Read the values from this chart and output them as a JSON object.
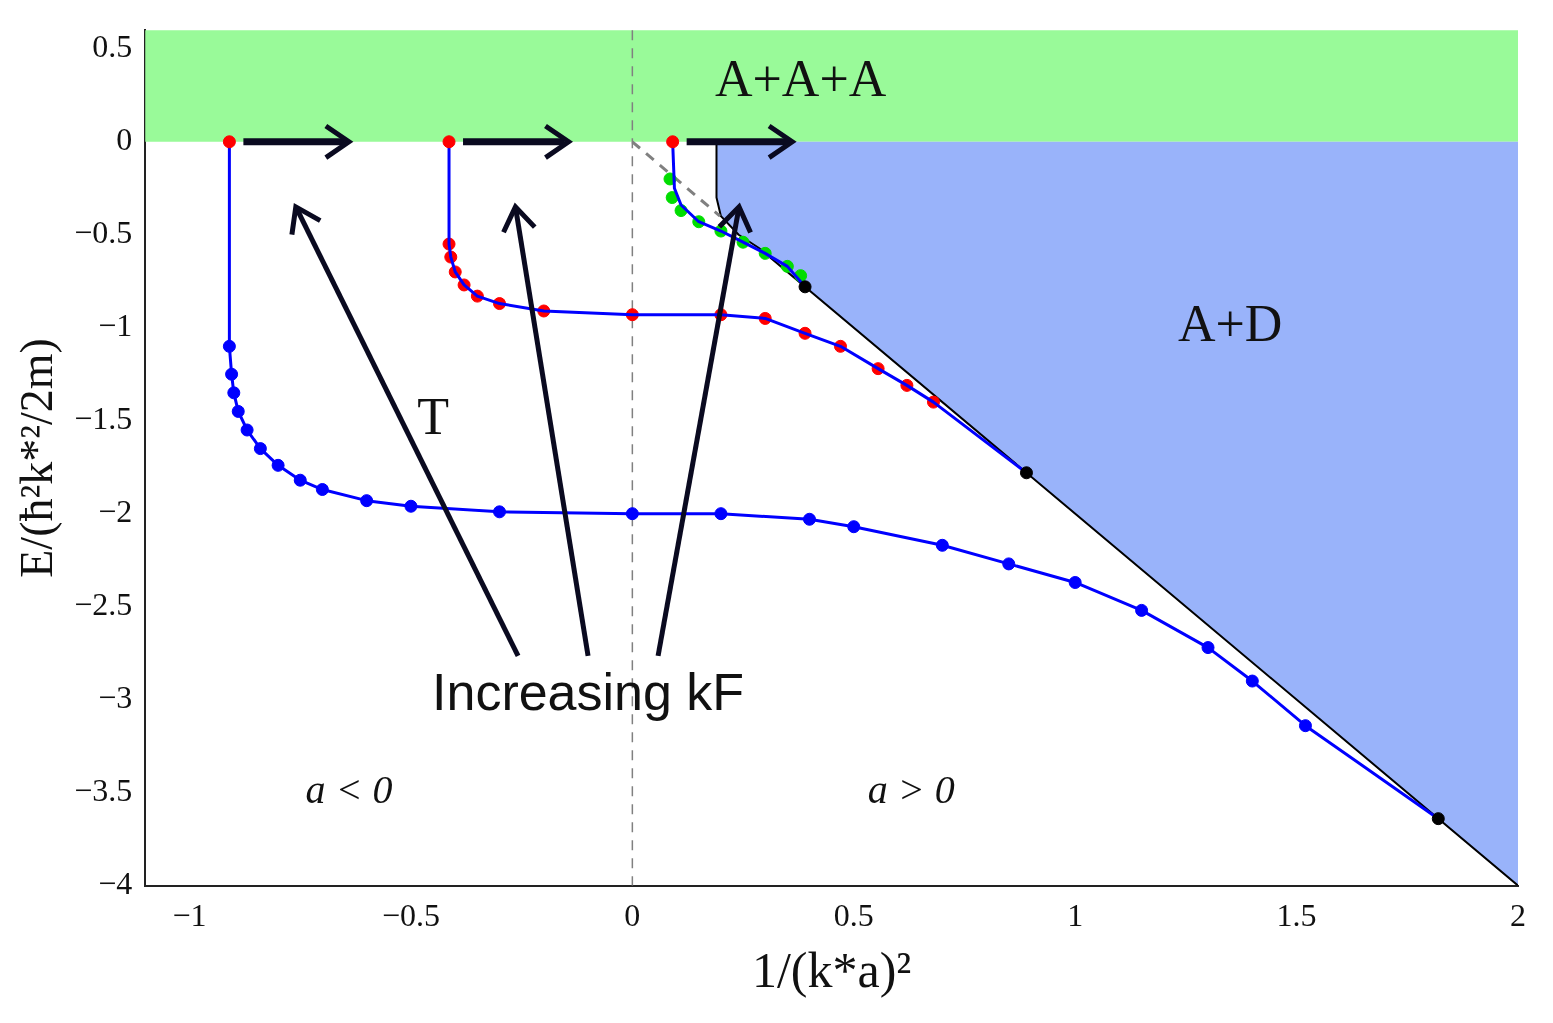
{
  "chart_data": {
    "type": "scatter",
    "xlabel": "1/(k*a)²",
    "ylabel": "E/(ħ²k*²/2m)",
    "xlim": [
      -1.1,
      2
    ],
    "ylim": [
      -4,
      0.6
    ],
    "xticks": [
      {
        "value": -1,
        "label": "−1"
      },
      {
        "value": -0.5,
        "label": "−0.5"
      },
      0,
      0.5,
      1,
      1.5,
      2
    ],
    "yticks": [
      0.5,
      0,
      {
        "value": -0.5,
        "label": "−0.5"
      },
      {
        "value": -1,
        "label": "−1"
      },
      {
        "value": -1.5,
        "label": "−1.5"
      },
      {
        "value": -2,
        "label": "−2"
      },
      {
        "value": -2.5,
        "label": "−2.5"
      },
      {
        "value": -3,
        "label": "−3"
      },
      {
        "value": -3.5,
        "label": "−3.5"
      },
      {
        "value": -4,
        "label": "−4"
      }
    ],
    "grid": false,
    "legend": false,
    "bands": [
      {
        "axis": "y",
        "from": 0,
        "to": 0.6,
        "color": "#99fa99"
      }
    ],
    "ref_lines": [
      {
        "axis": "x",
        "value": 0,
        "color": "#808080",
        "line_style": "dashed"
      }
    ],
    "annotations": [
      "A+A+A",
      "A+D",
      "T",
      "a < 0",
      "a > 0",
      "Increasing kF"
    ],
    "series": [
      {
        "type": "area",
        "color": "#99b3fa",
        "x": [
          0.19,
          0.19,
          0.2,
          0.24,
          0.285,
          2
        ],
        "values": [
          0,
          -0.3,
          -0.4,
          -0.5,
          -0.57,
          -4
        ]
      },
      {
        "type": "line",
        "color": "#808080",
        "marker": "none",
        "line_style": "dashed",
        "x": [
          0,
          0.198
        ],
        "values": [
          0,
          -0.4
        ]
      },
      {
        "color": "#0000ff",
        "marker": "circle",
        "x": [
          -0.91,
          -0.905,
          -0.9,
          -0.89,
          -0.87,
          -0.84,
          -0.8,
          -0.75,
          -0.7,
          -0.6,
          -0.5,
          -0.3,
          0,
          0.2,
          0.4,
          0.5,
          0.7,
          0.85,
          1.0,
          1.15,
          1.3,
          1.4,
          1.52
        ],
        "values": [
          -1.1,
          -1.25,
          -1.35,
          -1.45,
          -1.55,
          -1.65,
          -1.74,
          -1.82,
          -1.87,
          -1.93,
          -1.96,
          -1.99,
          -2.0,
          -2.0,
          -2.03,
          -2.07,
          -2.17,
          -2.27,
          -2.37,
          -2.52,
          -2.72,
          -2.9,
          -3.14
        ]
      },
      {
        "color": "#ff0000",
        "marker": "circle",
        "x": [
          -0.414,
          -0.41,
          -0.4,
          -0.38,
          -0.35,
          -0.3,
          -0.2,
          0,
          0.2,
          0.3,
          0.39,
          0.47,
          0.555,
          0.62,
          0.68
        ],
        "values": [
          -0.55,
          -0.62,
          -0.7,
          -0.77,
          -0.83,
          -0.87,
          -0.91,
          -0.93,
          -0.93,
          -0.95,
          -1.03,
          -1.1,
          -1.22,
          -1.31,
          -1.4
        ]
      },
      {
        "color": "#00dd00",
        "marker": "circle",
        "x": [
          0.085,
          0.09,
          0.11,
          0.15,
          0.2,
          0.25,
          0.3,
          0.35,
          0.38
        ],
        "values": [
          -0.2,
          -0.3,
          -0.37,
          -0.43,
          -0.48,
          -0.54,
          -0.6,
          -0.67,
          -0.72
        ]
      },
      {
        "type": "line",
        "color": "#0000ff",
        "marker": "none",
        "x": [
          -0.91,
          -0.91,
          -0.905,
          -0.9,
          -0.89,
          -0.87,
          -0.84,
          -0.8,
          -0.75,
          -0.7,
          -0.6,
          -0.5,
          -0.3,
          0,
          0.2,
          0.4,
          0.5,
          0.7,
          0.85,
          1.0,
          1.15,
          1.3,
          1.4,
          1.52,
          1.82
        ],
        "values": [
          0,
          -1.1,
          -1.25,
          -1.35,
          -1.45,
          -1.55,
          -1.65,
          -1.74,
          -1.82,
          -1.87,
          -1.93,
          -1.96,
          -1.99,
          -2.0,
          -2.0,
          -2.03,
          -2.07,
          -2.17,
          -2.27,
          -2.37,
          -2.52,
          -2.72,
          -2.9,
          -3.14,
          -3.64
        ]
      },
      {
        "type": "line",
        "color": "#0000ff",
        "marker": "none",
        "x": [
          -0.414,
          -0.414,
          -0.41,
          -0.4,
          -0.38,
          -0.35,
          -0.3,
          -0.2,
          0,
          0.2,
          0.3,
          0.39,
          0.47,
          0.555,
          0.62,
          0.68,
          0.89
        ],
        "values": [
          0,
          -0.55,
          -0.62,
          -0.7,
          -0.77,
          -0.83,
          -0.87,
          -0.91,
          -0.93,
          -0.93,
          -0.95,
          -1.03,
          -1.1,
          -1.22,
          -1.31,
          -1.4,
          -1.78
        ]
      },
      {
        "type": "line",
        "color": "#0000ff",
        "marker": "none",
        "x": [
          0.091,
          0.095,
          0.11,
          0.15,
          0.2,
          0.25,
          0.3,
          0.35,
          0.39
        ],
        "values": [
          0,
          -0.25,
          -0.34,
          -0.43,
          -0.48,
          -0.54,
          -0.6,
          -0.67,
          -0.78
        ]
      },
      {
        "color": "#ff0000",
        "marker": "circle",
        "x": [
          -0.91,
          -0.414,
          0.091
        ],
        "values": [
          0,
          0,
          0
        ]
      },
      {
        "color": "#000000",
        "marker": "circle",
        "x": [
          0.39,
          0.89,
          1.82
        ],
        "values": [
          -0.78,
          -1.78,
          -3.64
        ]
      }
    ]
  }
}
